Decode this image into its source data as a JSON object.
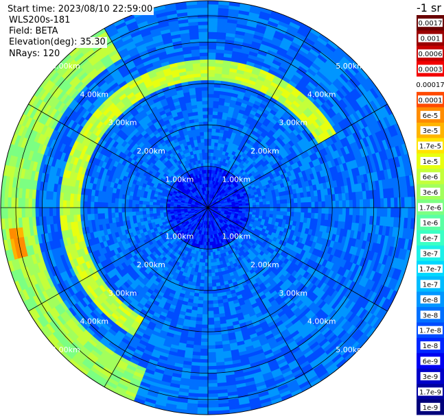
{
  "header": {
    "start_time": "Start time: 2023/08/10 22:59:00",
    "instrument": "WLS200s-181",
    "field": "Field: BETA",
    "elevation": "Elevation(deg): 35.30",
    "nrays": "NRays: 120"
  },
  "chart_data": {
    "type": "heatmap",
    "projection": "polar-ppi",
    "field": "BETA",
    "range_rings_km": [
      1,
      2,
      3,
      4,
      5
    ],
    "range_labels": [
      "1.00km",
      "2.00km",
      "3.00km",
      "4.00km",
      "5.00km"
    ],
    "max_range_km": 5.0,
    "spoke_angles_deg": [
      0,
      30,
      60,
      90,
      120,
      150,
      180,
      210,
      240,
      270,
      300,
      330
    ],
    "n_rays": 120,
    "colorbar": {
      "unit_label": "-1 sr",
      "ticks": [
        "0.0017",
        "0.001",
        "0.0006",
        "0.0003",
        "0.00017",
        "0.0001",
        "6e-5",
        "3e-5",
        "1.7e-5",
        "1e-5",
        "6e-6",
        "3e-6",
        "1.7e-6",
        "1e-6",
        "6e-7",
        "3e-7",
        "1.7e-7",
        "1e-7",
        "6e-8",
        "3e-8",
        "1.7e-8",
        "1e-8",
        "6e-9",
        "3e-9",
        "1.7e-9",
        "1e-9"
      ],
      "colors": [
        "#6a0000",
        "#9a0000",
        "#c80000",
        "#f20000",
        "#ffffff",
        "#ff4a00",
        "#ff8c00",
        "#ffb400",
        "#ffe400",
        "#e8ff10",
        "#c4ff3a",
        "#a2ff5c",
        "#7cff82",
        "#5affa4",
        "#3affc4",
        "#1cf0e8",
        "#00d8ff",
        "#00bcff",
        "#0096ff",
        "#0070ff",
        "#004cff",
        "#0026ff",
        "#0000f0",
        "#0000c8",
        "#0000a0",
        "#00007a"
      ]
    },
    "features": [
      {
        "name": "near-field low signal",
        "range_km": [
          0,
          1.0
        ],
        "level": "1e-8"
      },
      {
        "name": "background",
        "range_km": [
          1.0,
          5.0
        ],
        "level": "3e-8"
      },
      {
        "name": "enhanced ring",
        "range_km": [
          3.1,
          3.6
        ],
        "azimuth_deg": [
          -150,
          60
        ],
        "level": "6e-6"
      },
      {
        "name": "outer arc",
        "range_km": [
          4.2,
          5.0
        ],
        "azimuth_deg": [
          200,
          330
        ],
        "level": "3e-6"
      },
      {
        "name": "peak",
        "range_km": [
          4.5,
          4.8
        ],
        "azimuth_deg": [
          255,
          265
        ],
        "level": "6e-5"
      }
    ]
  }
}
